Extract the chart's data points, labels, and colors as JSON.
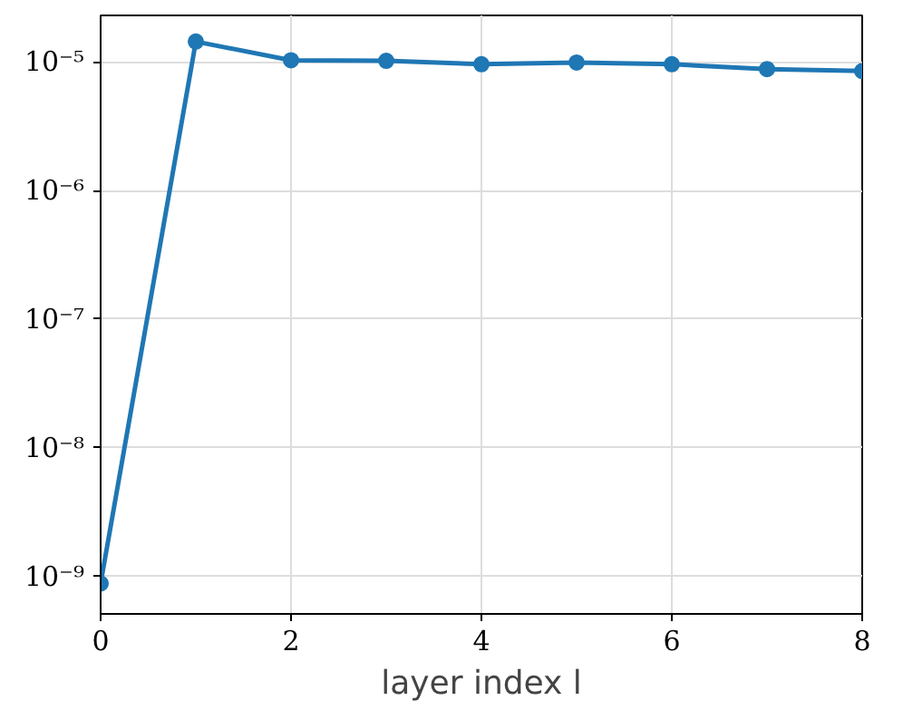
{
  "chart_data": {
    "type": "line",
    "xlabel": "layer index l",
    "x": [
      0,
      1,
      2,
      3,
      4,
      5,
      6,
      7,
      8
    ],
    "series": [
      {
        "color": "#1f77b4",
        "values": [
          8.8e-10,
          1.44e-05,
          1.03e-05,
          1.02e-05,
          9.6e-06,
          9.9e-06,
          9.6e-06,
          8.8e-06,
          8.5e-06
        ]
      }
    ],
    "xlim": [
      0,
      8
    ],
    "xticks": [
      0,
      2,
      4,
      6,
      8
    ],
    "ylim": [
      5.1e-10,
      2.3e-05
    ],
    "yticks": [
      {
        "value": 1e-09,
        "label": "10⁻⁹"
      },
      {
        "value": 1e-08,
        "label": "10⁻⁸"
      },
      {
        "value": 1e-07,
        "label": "10⁻⁷"
      },
      {
        "value": 1e-06,
        "label": "10⁻⁶"
      },
      {
        "value": 1e-05,
        "label": "10⁻⁵"
      }
    ],
    "log": "y",
    "grid": true,
    "marker": "circle",
    "line_style": "solid"
  }
}
